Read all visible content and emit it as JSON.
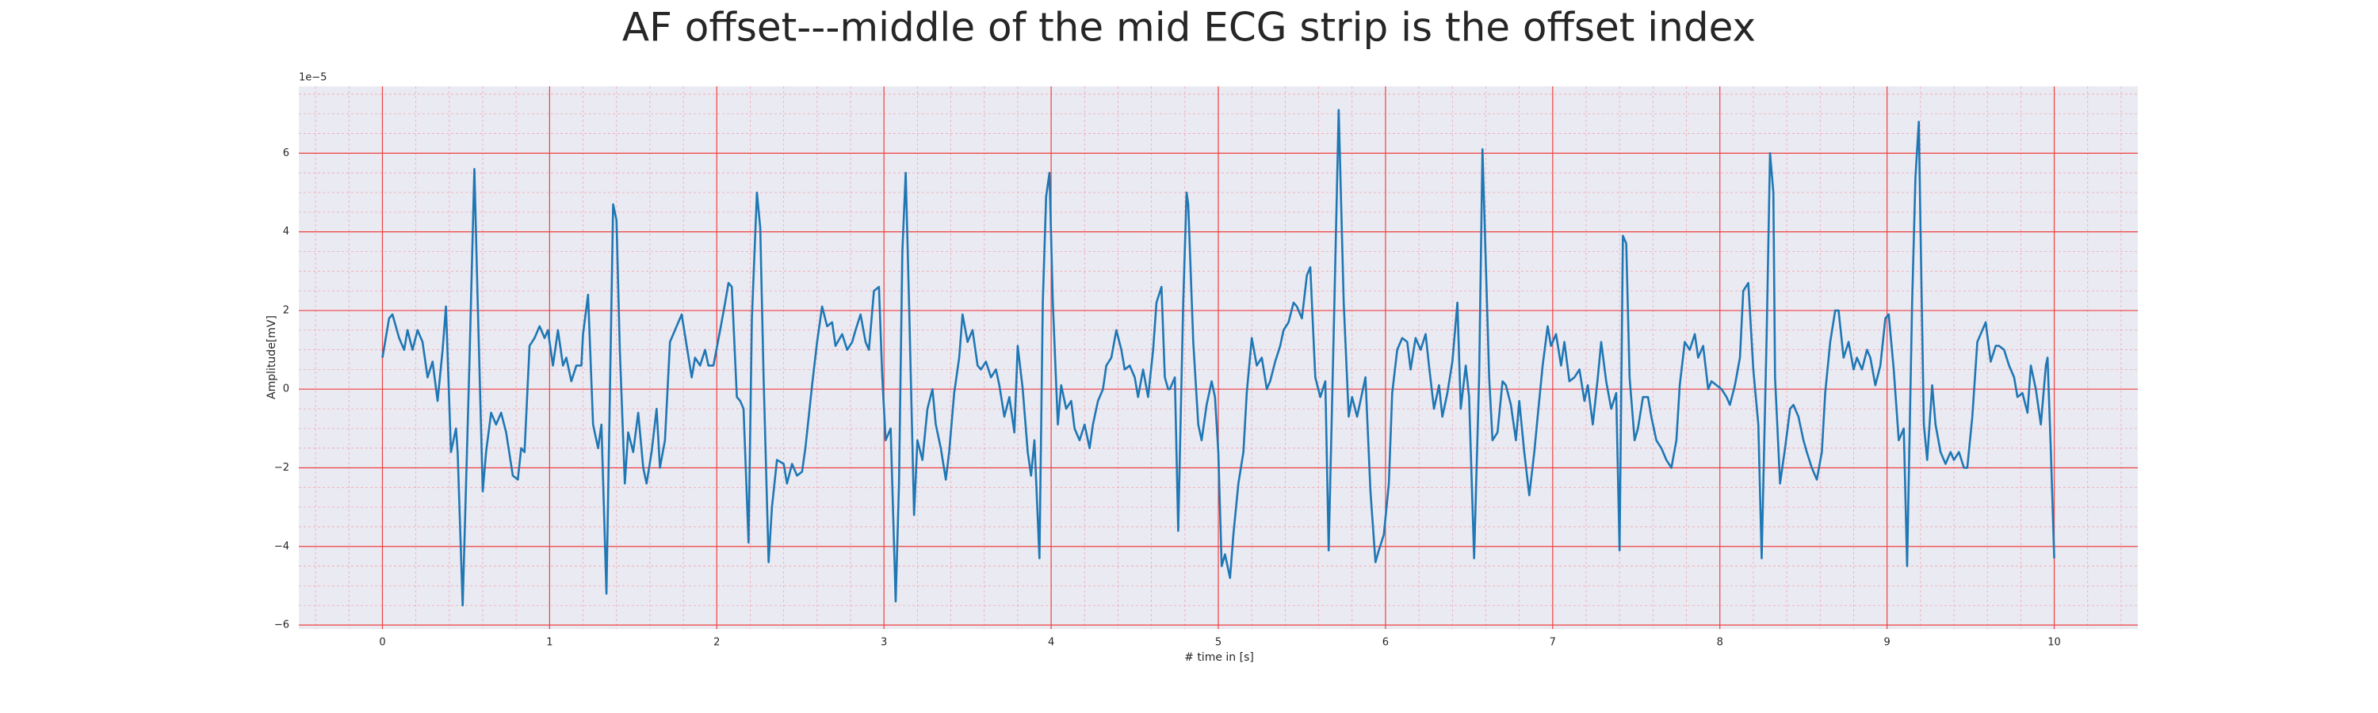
{
  "chart_data": {
    "type": "line",
    "title": "AF offset---middle of the mid ECG strip is the offset index",
    "xlabel": "# time in [s]",
    "ylabel": "Amplitude[mV]",
    "y_offset_label": "1e−5",
    "color": "#1f77b4",
    "background": "#eaeaf2",
    "grid": true,
    "grid_color": "#f04040",
    "minor_grid": true,
    "minor_grid_color": "#f4a6b0",
    "xlim": [
      -0.5,
      10.5
    ],
    "ylim": [
      -6.1,
      7.7
    ],
    "xticks": [
      0,
      1,
      2,
      3,
      4,
      5,
      6,
      7,
      8,
      9,
      10
    ],
    "yticks": [
      {
        "value": -6,
        "label": "−6"
      },
      {
        "value": -4,
        "label": "−4"
      },
      {
        "value": -2,
        "label": "−2"
      },
      0,
      2,
      4,
      6
    ],
    "x": [
      0,
      0.04,
      0.06,
      0.1,
      0.13,
      0.15,
      0.18,
      0.21,
      0.24,
      0.27,
      0.3,
      0.33,
      0.36,
      0.38,
      0.41,
      0.44,
      0.45,
      0.48,
      0.52,
      0.55,
      0.57,
      0.6,
      0.62,
      0.65,
      0.68,
      0.71,
      0.74,
      0.78,
      0.81,
      0.83,
      0.85,
      0.88,
      0.91,
      0.94,
      0.97,
      0.99,
      1.02,
      1.05,
      1.08,
      1.1,
      1.13,
      1.16,
      1.19,
      1.2,
      1.23,
      1.26,
      1.29,
      1.31,
      1.34,
      1.37,
      1.38,
      1.4,
      1.42,
      1.45,
      1.47,
      1.5,
      1.53,
      1.56,
      1.58,
      1.61,
      1.64,
      1.66,
      1.69,
      1.72,
      1.76,
      1.79,
      1.82,
      1.85,
      1.87,
      1.9,
      1.93,
      1.95,
      1.98,
      2.02,
      2.05,
      2.07,
      2.09,
      2.12,
      2.14,
      2.16,
      2.19,
      2.21,
      2.24,
      2.26,
      2.28,
      2.31,
      2.33,
      2.36,
      2.4,
      2.42,
      2.45,
      2.48,
      2.51,
      2.53,
      2.57,
      2.6,
      2.63,
      2.66,
      2.69,
      2.71,
      2.75,
      2.78,
      2.81,
      2.83,
      2.86,
      2.89,
      2.91,
      2.94,
      2.97,
      2.99,
      3.01,
      3.04,
      3.07,
      3.09,
      3.11,
      3.13,
      3.15,
      3.18,
      3.2,
      3.23,
      3.26,
      3.29,
      3.31,
      3.34,
      3.37,
      3.39,
      3.42,
      3.45,
      3.47,
      3.5,
      3.53,
      3.56,
      3.58,
      3.61,
      3.64,
      3.67,
      3.69,
      3.72,
      3.75,
      3.78,
      3.8,
      3.83,
      3.86,
      3.88,
      3.9,
      3.93,
      3.95,
      3.97,
      3.99,
      4.01,
      4.04,
      4.06,
      4.09,
      4.12,
      4.14,
      4.17,
      4.2,
      4.23,
      4.25,
      4.28,
      4.31,
      4.33,
      4.36,
      4.39,
      4.42,
      4.44,
      4.47,
      4.5,
      4.52,
      4.55,
      4.58,
      4.61,
      4.63,
      4.66,
      4.68,
      4.7,
      4.71,
      4.74,
      4.76,
      4.79,
      4.81,
      4.82,
      4.85,
      4.88,
      4.9,
      4.93,
      4.96,
      4.98,
      5.0,
      5.02,
      5.04,
      5.07,
      5.09,
      5.12,
      5.15,
      5.17,
      5.2,
      5.23,
      5.26,
      5.29,
      5.31,
      5.34,
      5.37,
      5.39,
      5.42,
      5.45,
      5.47,
      5.5,
      5.53,
      5.55,
      5.58,
      5.61,
      5.64,
      5.66,
      5.69,
      5.72,
      5.75,
      5.78,
      5.8,
      5.83,
      5.86,
      5.88,
      5.91,
      5.94,
      5.96,
      5.99,
      6.02,
      6.04,
      6.07,
      6.1,
      6.13,
      6.15,
      6.18,
      6.21,
      6.24,
      6.26,
      6.29,
      6.32,
      6.34,
      6.37,
      6.4,
      6.43,
      6.45,
      6.48,
      6.5,
      6.53,
      6.56,
      6.58,
      6.62,
      6.64,
      6.67,
      6.7,
      6.72,
      6.75,
      6.78,
      6.8,
      6.83,
      6.86,
      6.89,
      6.91,
      6.94,
      6.97,
      6.99,
      7.02,
      7.05,
      7.07,
      7.1,
      7.13,
      7.16,
      7.19,
      7.21,
      7.24,
      7.27,
      7.29,
      7.32,
      7.35,
      7.38,
      7.4,
      7.42,
      7.44,
      7.46,
      7.49,
      7.51,
      7.54,
      7.57,
      7.59,
      7.62,
      7.65,
      7.68,
      7.71,
      7.74,
      7.76,
      7.79,
      7.82,
      7.85,
      7.87,
      7.9,
      7.93,
      7.95,
      7.98,
      8.01,
      8.04,
      8.06,
      8.09,
      8.12,
      8.14,
      8.17,
      8.2,
      8.23,
      8.25,
      8.28,
      8.3,
      8.32,
      8.33,
      8.36,
      8.39,
      8.42,
      8.44,
      8.47,
      8.5,
      8.52,
      8.55,
      8.58,
      8.61,
      8.63,
      8.66,
      8.69,
      8.71,
      8.74,
      8.77,
      8.8,
      8.82,
      8.85,
      8.88,
      8.9,
      8.93,
      8.96,
      8.99,
      9.01,
      9.04,
      9.07,
      9.1,
      9.12,
      9.15,
      9.17,
      9.19,
      9.2,
      9.22,
      9.24,
      9.27,
      9.29,
      9.32,
      9.35,
      9.38,
      9.4,
      9.43,
      9.46,
      9.48,
      9.51,
      9.54,
      9.57,
      9.59,
      9.62,
      9.65,
      9.67,
      9.7,
      9.73,
      9.76,
      9.78,
      9.81,
      9.84,
      9.86,
      9.89,
      9.92,
      9.95,
      9.96,
      9.98,
      10.0
    ],
    "values": [
      0.8,
      1.8,
      1.9,
      1.3,
      1.0,
      1.5,
      1.0,
      1.5,
      1.2,
      0.3,
      0.7,
      -0.3,
      1.0,
      2.1,
      -1.6,
      -1.0,
      -1.6,
      -5.5,
      0.6,
      5.6,
      2.2,
      -2.6,
      -1.6,
      -0.6,
      -0.9,
      -0.6,
      -1.1,
      -2.2,
      -2.3,
      -1.5,
      -1.6,
      1.1,
      1.3,
      1.6,
      1.3,
      1.5,
      0.6,
      1.5,
      0.6,
      0.8,
      0.2,
      0.6,
      0.6,
      1.4,
      2.4,
      -0.9,
      -1.5,
      -0.9,
      -5.2,
      2.2,
      4.7,
      4.3,
      1.0,
      -2.4,
      -1.1,
      -1.6,
      -0.6,
      -2.0,
      -2.4,
      -1.6,
      -0.5,
      -2.0,
      -1.3,
      1.2,
      1.6,
      1.9,
      1.1,
      0.3,
      0.8,
      0.6,
      1.0,
      0.6,
      0.6,
      1.5,
      2.2,
      2.7,
      2.6,
      -0.2,
      -0.3,
      -0.5,
      -3.9,
      1.8,
      5.0,
      4.1,
      0.3,
      -4.4,
      -3.0,
      -1.8,
      -1.9,
      -2.4,
      -1.9,
      -2.2,
      -2.1,
      -1.5,
      0.1,
      1.2,
      2.1,
      1.6,
      1.7,
      1.1,
      1.4,
      1.0,
      1.2,
      1.5,
      1.9,
      1.2,
      1.0,
      2.5,
      2.6,
      0.3,
      -1.3,
      -1.0,
      -5.4,
      -2.4,
      3.5,
      5.5,
      2.2,
      -3.2,
      -1.3,
      -1.8,
      -0.5,
      0.0,
      -0.9,
      -1.5,
      -2.3,
      -1.6,
      -0.1,
      0.8,
      1.9,
      1.2,
      1.5,
      0.6,
      0.5,
      0.7,
      0.3,
      0.5,
      0.1,
      -0.7,
      -0.2,
      -1.1,
      1.1,
      0.0,
      -1.6,
      -2.2,
      -1.3,
      -4.3,
      2.2,
      4.9,
      5.5,
      2.2,
      -0.9,
      0.1,
      -0.5,
      -0.3,
      -1.0,
      -1.3,
      -0.9,
      -1.5,
      -0.9,
      -0.3,
      0.0,
      0.6,
      0.8,
      1.5,
      1.0,
      0.5,
      0.6,
      0.3,
      -0.2,
      0.5,
      -0.2,
      1.0,
      2.2,
      2.6,
      0.3,
      0.0,
      0.0,
      0.3,
      -3.6,
      2.2,
      5.0,
      4.7,
      1.2,
      -0.9,
      -1.3,
      -0.4,
      0.2,
      -0.2,
      -1.6,
      -4.5,
      -4.2,
      -4.8,
      -3.7,
      -2.4,
      -1.6,
      -0.1,
      1.3,
      0.6,
      0.8,
      0.0,
      0.2,
      0.7,
      1.1,
      1.5,
      1.7,
      2.2,
      2.1,
      1.8,
      2.9,
      3.1,
      0.3,
      -0.2,
      0.2,
      -4.1,
      1.4,
      7.1,
      2.2,
      -0.7,
      -0.2,
      -0.7,
      -0.1,
      0.3,
      -2.6,
      -4.4,
      -4.1,
      -3.7,
      -2.4,
      -0.1,
      1.0,
      1.3,
      1.2,
      0.5,
      1.3,
      1.0,
      1.4,
      0.6,
      -0.5,
      0.1,
      -0.7,
      -0.1,
      0.7,
      2.2,
      -0.5,
      0.6,
      -0.2,
      -4.3,
      0.3,
      6.1,
      0.3,
      -1.3,
      -1.1,
      0.2,
      0.1,
      -0.4,
      -1.3,
      -0.3,
      -1.6,
      -2.7,
      -1.6,
      -0.7,
      0.6,
      1.6,
      1.1,
      1.4,
      0.6,
      1.2,
      0.2,
      0.3,
      0.5,
      -0.3,
      0.1,
      -0.9,
      0.3,
      1.2,
      0.2,
      -0.5,
      -0.1,
      -4.1,
      3.9,
      3.7,
      0.3,
      -1.3,
      -1.0,
      -0.2,
      -0.2,
      -0.7,
      -1.3,
      -1.5,
      -1.8,
      -2.0,
      -1.3,
      0.1,
      1.2,
      1.0,
      1.4,
      0.8,
      1.1,
      0.0,
      0.2,
      0.1,
      0.0,
      -0.2,
      -0.4,
      0.1,
      0.8,
      2.5,
      2.7,
      0.5,
      -0.9,
      -4.3,
      1.4,
      6.0,
      5.0,
      0.3,
      -2.4,
      -1.5,
      -0.5,
      -0.4,
      -0.7,
      -1.3,
      -1.6,
      -2.0,
      -2.3,
      -1.6,
      -0.1,
      1.2,
      2.0,
      2.0,
      0.8,
      1.2,
      0.5,
      0.8,
      0.5,
      1.0,
      0.8,
      0.1,
      0.6,
      1.8,
      1.9,
      0.5,
      -1.3,
      -1.0,
      -4.5,
      2.2,
      5.4,
      6.8,
      4.1,
      -0.9,
      -1.8,
      0.1,
      -0.9,
      -1.6,
      -1.9,
      -1.6,
      -1.8,
      -1.6,
      -2.0,
      -2.0,
      -0.7,
      1.2,
      1.5,
      1.7,
      0.7,
      1.1,
      1.1,
      1.0,
      0.6,
      0.3,
      -0.2,
      -0.1,
      -0.6,
      0.6,
      0.0,
      -0.9,
      0.6,
      0.8,
      -1.6,
      -4.3
    ]
  }
}
